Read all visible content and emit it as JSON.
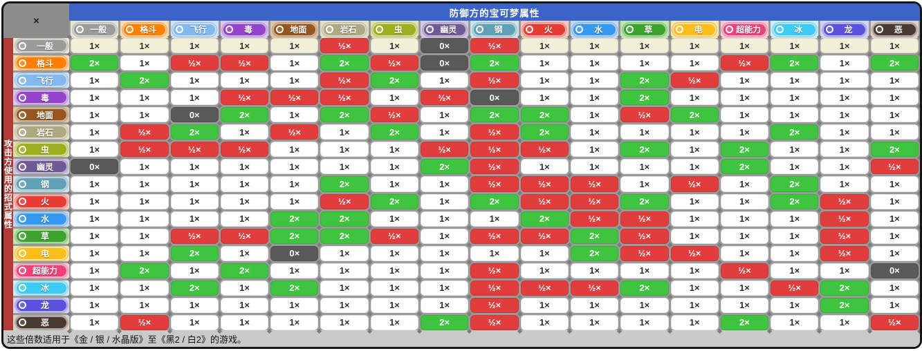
{
  "window": {
    "close_label": "×"
  },
  "header": {
    "title": "防御方的宝可梦属性"
  },
  "side": {
    "label": "攻击方使用的招式属性"
  },
  "footer": {
    "note": "这些倍数适用于《金 / 银 / 水晶版》至《黑2 / 白2》的游戏。"
  },
  "colors": {
    "title_bar": "#3B64C8",
    "corner_bg": "#8C8C8C",
    "side_bar": "#B23A33",
    "grid_bg": "#9A9A9A",
    "grid_dot": "#7C7C7C",
    "footer_bg": "#CACACA",
    "frame_border": "#161616",
    "multiplier": {
      "2": "#3EC43E",
      "0.5": "#E23D3D",
      "0": "#595959",
      "1": "#FFFFFF",
      "1_highlighted_row": "#F2EFD9"
    }
  },
  "chart_data": {
    "type": "heatmap",
    "title": "防御方的宝可梦属性",
    "row_axis_label": "攻击方使用的招式属性",
    "col_axis_label": "防御方的宝可梦属性",
    "highlighted_row": 0,
    "display": {
      "0": "0×",
      "0.5": "½×",
      "1": "1×",
      "2": "2×"
    },
    "types": [
      {
        "id": "normal",
        "label": "一般",
        "color": "#9A9C9A",
        "light": "#E6E6D0"
      },
      {
        "id": "fighting",
        "label": "格斗",
        "color": "#FF8000",
        "light": "#FFD9A8"
      },
      {
        "id": "flying",
        "label": "飞行",
        "color": "#81B9EF",
        "light": "#CDE1F8"
      },
      {
        "id": "poison",
        "label": "毒",
        "color": "#9443CC",
        "light": "#DCC5F0"
      },
      {
        "id": "ground",
        "label": "地面",
        "color": "#96561E",
        "light": "#E0C5A5"
      },
      {
        "id": "rock",
        "label": "岩石",
        "color": "#AFA981",
        "light": "#E5DFC5"
      },
      {
        "id": "bug",
        "label": "虫",
        "color": "#9CAF1E",
        "light": "#DEE4A8"
      },
      {
        "id": "ghost",
        "label": "幽灵",
        "color": "#6F5A96",
        "light": "#D2C9E6"
      },
      {
        "id": "steel",
        "label": "钢",
        "color": "#60A1B8",
        "light": "#CCE3EC"
      },
      {
        "id": "fire",
        "label": "火",
        "color": "#E73B33",
        "light": "#F7C3BC"
      },
      {
        "id": "water",
        "label": "水",
        "color": "#3598F1",
        "light": "#BDD9F9"
      },
      {
        "id": "grass",
        "label": "草",
        "color": "#3CA32C",
        "light": "#BCE8AC"
      },
      {
        "id": "electric",
        "label": "电",
        "color": "#FBBD18",
        "light": "#FBE7A2"
      },
      {
        "id": "psychic",
        "label": "超能力",
        "color": "#EF4179",
        "light": "#FAC6D8"
      },
      {
        "id": "ice",
        "label": "冰",
        "color": "#3ECBF4",
        "light": "#C8EFFB"
      },
      {
        "id": "dragon",
        "label": "龙",
        "color": "#5A52DC",
        "light": "#D5D2F8"
      },
      {
        "id": "dark",
        "label": "恶",
        "color": "#493A31",
        "light": "#DCD0C7"
      }
    ],
    "multipliers": [
      [
        1,
        1,
        1,
        1,
        1,
        0.5,
        1,
        0,
        0.5,
        1,
        1,
        1,
        1,
        1,
        1,
        1,
        1
      ],
      [
        2,
        1,
        0.5,
        0.5,
        1,
        2,
        0.5,
        0,
        2,
        1,
        1,
        1,
        1,
        0.5,
        2,
        1,
        2
      ],
      [
        1,
        2,
        1,
        1,
        1,
        0.5,
        2,
        1,
        0.5,
        1,
        1,
        2,
        0.5,
        1,
        1,
        1,
        1
      ],
      [
        1,
        1,
        1,
        0.5,
        0.5,
        0.5,
        1,
        0.5,
        0,
        1,
        1,
        2,
        1,
        1,
        1,
        1,
        1
      ],
      [
        1,
        1,
        0,
        2,
        1,
        2,
        0.5,
        1,
        2,
        2,
        1,
        0.5,
        2,
        1,
        1,
        1,
        1
      ],
      [
        1,
        0.5,
        2,
        1,
        0.5,
        1,
        2,
        1,
        0.5,
        2,
        1,
        1,
        1,
        1,
        2,
        1,
        1
      ],
      [
        1,
        0.5,
        0.5,
        0.5,
        1,
        1,
        1,
        0.5,
        0.5,
        0.5,
        1,
        2,
        1,
        2,
        1,
        1,
        2
      ],
      [
        0,
        1,
        1,
        1,
        1,
        1,
        1,
        2,
        0.5,
        1,
        1,
        1,
        1,
        2,
        1,
        1,
        0.5
      ],
      [
        1,
        1,
        1,
        1,
        1,
        2,
        1,
        1,
        0.5,
        0.5,
        0.5,
        1,
        0.5,
        1,
        2,
        1,
        1
      ],
      [
        1,
        1,
        1,
        1,
        1,
        0.5,
        2,
        1,
        2,
        0.5,
        0.5,
        2,
        1,
        1,
        2,
        0.5,
        1
      ],
      [
        1,
        1,
        1,
        1,
        2,
        2,
        1,
        1,
        1,
        2,
        0.5,
        0.5,
        1,
        1,
        1,
        0.5,
        1
      ],
      [
        1,
        1,
        0.5,
        0.5,
        2,
        2,
        0.5,
        1,
        0.5,
        0.5,
        2,
        0.5,
        1,
        1,
        1,
        0.5,
        1
      ],
      [
        1,
        1,
        2,
        1,
        0,
        1,
        1,
        1,
        1,
        1,
        2,
        0.5,
        0.5,
        1,
        1,
        0.5,
        1
      ],
      [
        1,
        2,
        1,
        2,
        1,
        1,
        1,
        1,
        0.5,
        1,
        1,
        1,
        1,
        0.5,
        1,
        1,
        0
      ],
      [
        1,
        1,
        2,
        1,
        2,
        1,
        1,
        1,
        0.5,
        0.5,
        0.5,
        2,
        1,
        1,
        0.5,
        2,
        1
      ],
      [
        1,
        1,
        1,
        1,
        1,
        1,
        1,
        1,
        0.5,
        1,
        1,
        1,
        1,
        1,
        1,
        2,
        1
      ],
      [
        1,
        0.5,
        1,
        1,
        1,
        1,
        1,
        2,
        0.5,
        1,
        1,
        1,
        1,
        2,
        1,
        1,
        0.5
      ]
    ]
  }
}
